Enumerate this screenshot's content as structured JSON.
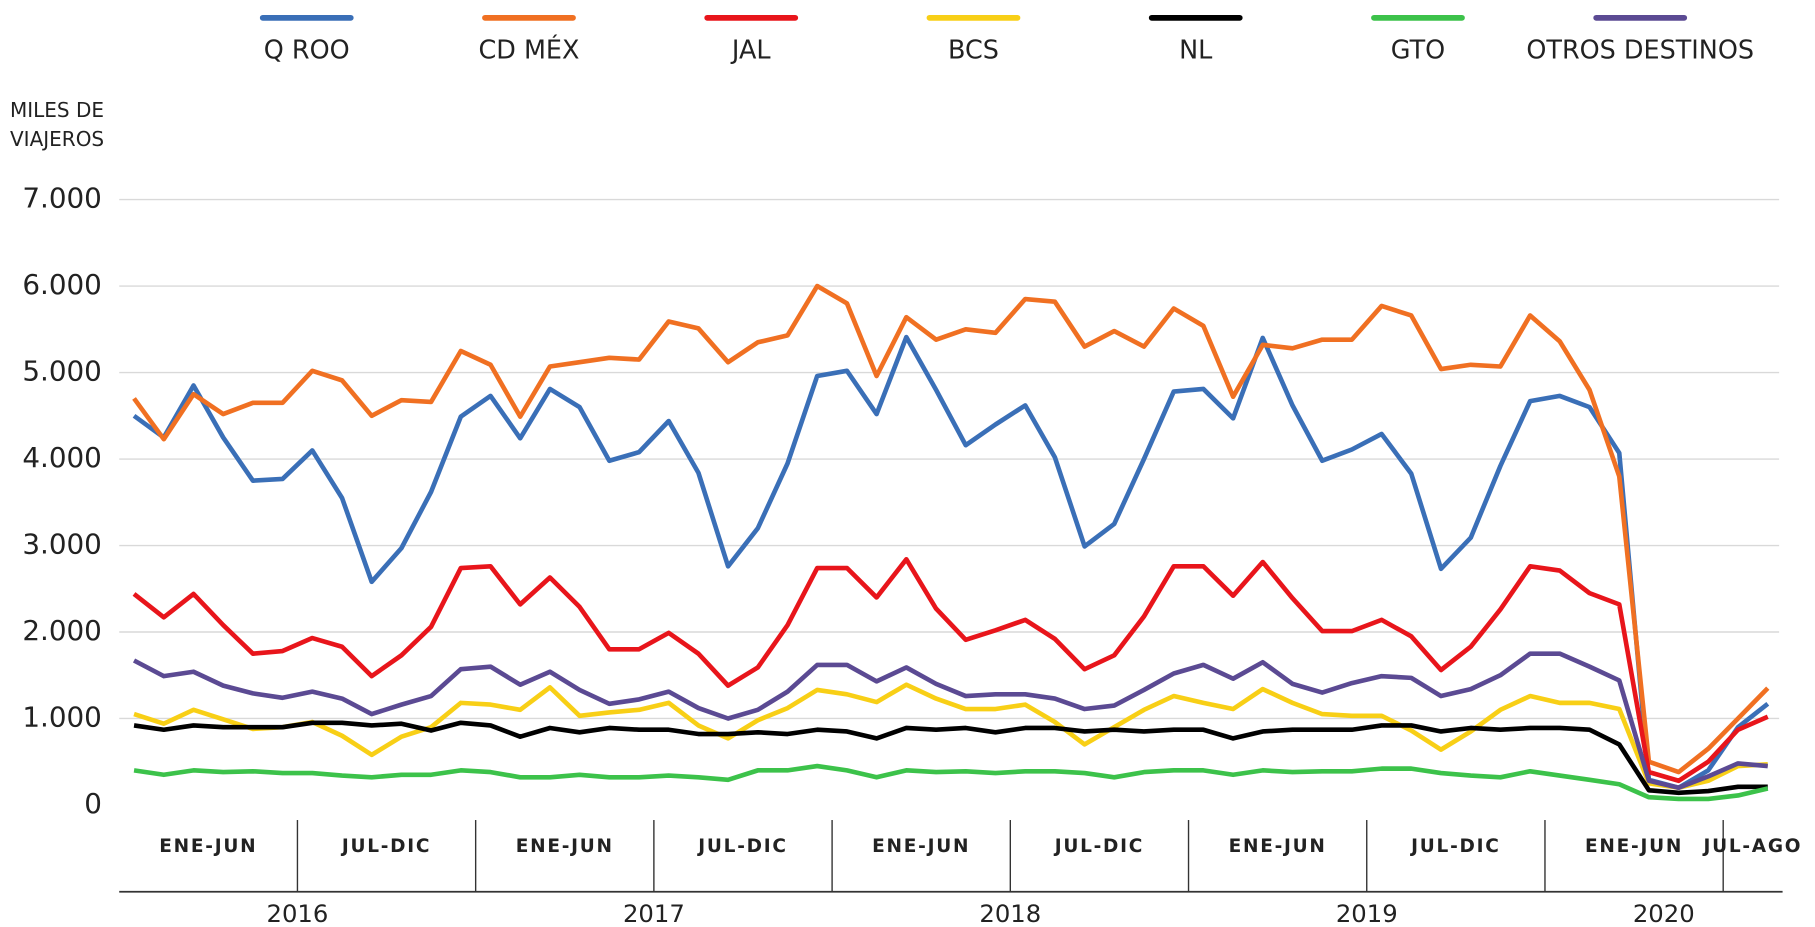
{
  "chart_data": {
    "type": "line",
    "ylabel": "MILES DE VIAJEROS",
    "ylim": [
      0,
      7000
    ],
    "yticks": [
      0,
      {
        "value": 1000,
        "label": "1.000"
      },
      {
        "value": 2000,
        "label": "2.000"
      },
      {
        "value": 3000,
        "label": "3.000"
      },
      {
        "value": 4000,
        "label": "4.000"
      },
      {
        "value": 5000,
        "label": "5.000"
      },
      {
        "value": 6000,
        "label": "6.000"
      },
      {
        "value": 7000,
        "label": "7.000"
      }
    ],
    "grid": true,
    "legend": "top",
    "categories": [
      null,
      null,
      null,
      null,
      null,
      null,
      null,
      null,
      null,
      null,
      null,
      null,
      null,
      null,
      null,
      null,
      null,
      null,
      null,
      null,
      null,
      null,
      null,
      null,
      null,
      null,
      null,
      null,
      null,
      null,
      null,
      null,
      null,
      null,
      null,
      null,
      null,
      null,
      null,
      null,
      null,
      null,
      null,
      null,
      null,
      null,
      null,
      null,
      null,
      null,
      null,
      null,
      null,
      null,
      null,
      null
    ],
    "period_labels": [
      "ENE-JUN",
      "JUL-DIC",
      "ENE-JUN",
      "JUL-DIC",
      "ENE-JUN",
      "JUL-DIC",
      "ENE-JUN",
      "JUL-DIC",
      "ENE-JUN",
      "JUL-AGO"
    ],
    "year_labels": [
      "2016",
      "2017",
      "2018",
      "2019",
      "2020"
    ],
    "series": [
      {
        "name": "Q ROO",
        "color": "#3a6fb7",
        "values": [
          4500,
          4250,
          4850,
          4250,
          3750,
          3770,
          4100,
          3550,
          2580,
          2970,
          3620,
          4490,
          4730,
          4240,
          4810,
          4600,
          3980,
          4080,
          4440,
          3840,
          2760,
          3200,
          3950,
          4960,
          5020,
          4520,
          5410,
          4800,
          4160,
          4400,
          4620,
          4020,
          2990,
          3250,
          4000,
          4780,
          4810,
          4470,
          5400,
          4620,
          3980,
          4110,
          4290,
          3830,
          2730,
          3090,
          3920,
          4670,
          4730,
          4600,
          4070,
          290,
          200,
          400,
          900,
          1170
        ]
      },
      {
        "name": "CD MÉX",
        "color": "#f07022",
        "values": [
          4700,
          4230,
          4750,
          4520,
          4650,
          4650,
          5020,
          4910,
          4500,
          4680,
          4660,
          5250,
          5090,
          4490,
          5070,
          5120,
          5170,
          5150,
          5590,
          5510,
          5120,
          5350,
          5430,
          6000,
          5800,
          4960,
          5640,
          5380,
          5500,
          5460,
          5850,
          5820,
          5300,
          5480,
          5300,
          5740,
          5540,
          4720,
          5320,
          5280,
          5380,
          5380,
          5770,
          5660,
          5040,
          5090,
          5070,
          5660,
          5360,
          4800,
          3800,
          500,
          380,
          650,
          1000,
          1350
        ]
      },
      {
        "name": "JAL",
        "color": "#e8151b",
        "values": [
          2440,
          2170,
          2440,
          2080,
          1750,
          1780,
          1930,
          1830,
          1490,
          1730,
          2060,
          2740,
          2760,
          2320,
          2630,
          2290,
          1800,
          1800,
          1990,
          1750,
          1380,
          1590,
          2080,
          2740,
          2740,
          2400,
          2840,
          2270,
          1910,
          2020,
          2140,
          1920,
          1570,
          1730,
          2180,
          2760,
          2760,
          2420,
          2810,
          2390,
          2010,
          2010,
          2140,
          1950,
          1560,
          1830,
          2260,
          2760,
          2710,
          2450,
          2320,
          380,
          280,
          500,
          870,
          1020
        ]
      },
      {
        "name": "BCS",
        "color": "#f8cf16",
        "values": [
          1050,
          940,
          1100,
          990,
          880,
          900,
          960,
          800,
          580,
          790,
          900,
          1180,
          1160,
          1100,
          1360,
          1030,
          1070,
          1100,
          1180,
          920,
          770,
          980,
          1120,
          1330,
          1280,
          1190,
          1390,
          1230,
          1110,
          1110,
          1160,
          960,
          700,
          900,
          1100,
          1260,
          1180,
          1110,
          1340,
          1180,
          1050,
          1030,
          1030,
          860,
          640,
          850,
          1100,
          1260,
          1180,
          1180,
          1110,
          250,
          200,
          280,
          450,
          470
        ]
      },
      {
        "name": "NL",
        "color": "#000000",
        "values": [
          920,
          870,
          920,
          900,
          900,
          900,
          950,
          950,
          920,
          940,
          860,
          950,
          920,
          790,
          890,
          840,
          890,
          870,
          870,
          820,
          820,
          840,
          820,
          870,
          850,
          770,
          890,
          870,
          890,
          840,
          890,
          890,
          850,
          870,
          850,
          870,
          870,
          770,
          850,
          870,
          870,
          870,
          920,
          920,
          850,
          890,
          870,
          890,
          890,
          870,
          700,
          170,
          140,
          160,
          210,
          210
        ]
      },
      {
        "name": "GTO",
        "color": "#3cc24a",
        "values": [
          400,
          350,
          400,
          380,
          390,
          370,
          370,
          340,
          320,
          350,
          350,
          400,
          380,
          320,
          320,
          350,
          320,
          320,
          340,
          320,
          290,
          400,
          400,
          450,
          400,
          320,
          400,
          380,
          390,
          370,
          390,
          390,
          370,
          320,
          380,
          400,
          400,
          350,
          400,
          380,
          390,
          390,
          420,
          420,
          370,
          340,
          320,
          390,
          340,
          290,
          240,
          90,
          70,
          70,
          110,
          190
        ]
      },
      {
        "name": "OTROS DESTINOS",
        "color": "#5b4a93",
        "values": [
          1670,
          1490,
          1540,
          1380,
          1290,
          1240,
          1310,
          1230,
          1050,
          1160,
          1260,
          1570,
          1600,
          1390,
          1540,
          1330,
          1170,
          1220,
          1310,
          1120,
          1000,
          1100,
          1310,
          1620,
          1620,
          1430,
          1590,
          1400,
          1260,
          1280,
          1280,
          1230,
          1110,
          1150,
          1330,
          1520,
          1620,
          1460,
          1650,
          1400,
          1300,
          1410,
          1490,
          1470,
          1260,
          1340,
          1500,
          1750,
          1750,
          1600,
          1440,
          280,
          200,
          330,
          480,
          450
        ]
      }
    ]
  }
}
